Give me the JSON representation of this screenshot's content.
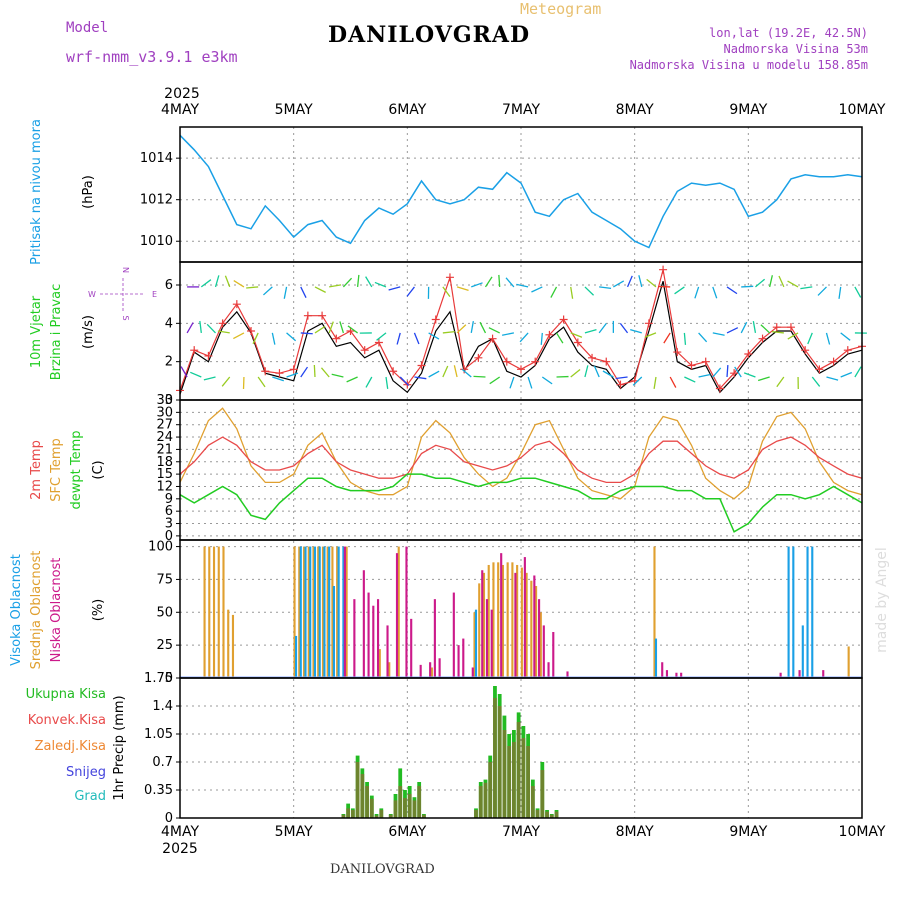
{
  "header": {
    "model_label": "Model",
    "model_name": "wrf-nmm_v3.9.1  e3km",
    "title": "DANILOVGRAD",
    "meteogram_label": "Meteogram",
    "lonlat": "lon,lat (19.2E, 42.5N)",
    "elevation": "Nadmorska Visina 53m",
    "model_elevation": "Nadmorska Visina u modelu 158.85m",
    "credit": "made by Angel",
    "footer_title": "DANILOVGRAD"
  },
  "colors": {
    "pressure": "#1aa0e6",
    "wind_speed": "#000000",
    "gust": "#e83a3a",
    "t2m": "#e84a4a",
    "tsfc": "#e0a030",
    "dewpt": "#22cc22",
    "high_cloud": "#1aa0e6",
    "mid_cloud": "#e0a030",
    "low_cloud": "#cc1a8a",
    "total_precip": "#22bb22",
    "conv_precip": "#e84a4a",
    "frozen": "#ee8833",
    "snow": "#4444dd",
    "graupel": "#22bbbb",
    "axis_label_cyan": "#1aa0e6",
    "axis_label_green": "#22cc22",
    "axis_label_purple": "#a040c0"
  },
  "chart_data": {
    "type": "line",
    "x_axis": {
      "top_year": "2025",
      "bottom_year": "2025",
      "ticks": [
        "4MAY",
        "5MAY",
        "6MAY",
        "7MAY",
        "8MAY",
        "9MAY",
        "10MAY"
      ],
      "range_hours": [
        0,
        144
      ]
    },
    "panels": {
      "pressure": {
        "label": "Pritisak na nivou mora",
        "unit": "(hPa)",
        "ylim": [
          1009,
          1015.5
        ],
        "yticks": [
          "1010",
          "1012",
          "1014"
        ],
        "hours": [
          0,
          3,
          6,
          9,
          12,
          15,
          18,
          21,
          24,
          27,
          30,
          33,
          36,
          39,
          42,
          45,
          48,
          51,
          54,
          57,
          60,
          63,
          66,
          69,
          72,
          75,
          78,
          81,
          84,
          87,
          90,
          93,
          96,
          99,
          102,
          105,
          108,
          111,
          114,
          117,
          120,
          123,
          126,
          129,
          132,
          135,
          138,
          141,
          144
        ],
        "values": [
          1015.1,
          1014.4,
          1013.6,
          1012.2,
          1010.8,
          1010.6,
          1011.7,
          1011.0,
          1010.2,
          1010.8,
          1011.0,
          1010.2,
          1009.9,
          1011.0,
          1011.6,
          1011.3,
          1011.8,
          1012.9,
          1012.0,
          1011.8,
          1012.0,
          1012.6,
          1012.5,
          1013.3,
          1012.8,
          1011.4,
          1011.2,
          1012.0,
          1012.3,
          1011.4,
          1011.0,
          1010.6,
          1010.0,
          1009.7,
          1011.2,
          1012.4,
          1012.8,
          1012.7,
          1012.8,
          1012.5,
          1011.2,
          1011.4,
          1012.0,
          1013.0,
          1013.2,
          1013.1,
          1013.1,
          1013.2,
          1013.1
        ]
      },
      "wind": {
        "label_1": "10m Vjetar",
        "label_2": "Brzina i Pravac",
        "unit": "(m/s)",
        "compass": {
          "n": "N",
          "s": "S",
          "e": "E",
          "w": "W"
        },
        "ylim": [
          0,
          7.2
        ],
        "yticks": [
          "0",
          "2",
          "4",
          "6"
        ],
        "hours": [
          0,
          3,
          6,
          9,
          12,
          15,
          18,
          21,
          24,
          27,
          30,
          33,
          36,
          39,
          42,
          45,
          48,
          51,
          54,
          57,
          60,
          63,
          66,
          69,
          72,
          75,
          78,
          81,
          84,
          87,
          90,
          93,
          96,
          99,
          102,
          105,
          108,
          111,
          114,
          117,
          120,
          123,
          126,
          129,
          132,
          135,
          138,
          141,
          144
        ],
        "speed": [
          0.3,
          2.5,
          2.0,
          3.8,
          4.6,
          3.5,
          1.4,
          1.2,
          1.0,
          3.6,
          4.0,
          2.8,
          3.0,
          2.2,
          2.6,
          1.0,
          0.4,
          1.4,
          3.6,
          4.6,
          1.5,
          2.8,
          3.2,
          1.5,
          1.2,
          1.8,
          3.2,
          3.8,
          2.5,
          1.8,
          1.6,
          0.6,
          1.2,
          3.6,
          6.2,
          2.0,
          1.6,
          1.8,
          0.4,
          1.2,
          2.2,
          3.0,
          3.6,
          3.6,
          2.4,
          1.4,
          1.8,
          2.4,
          2.6
        ],
        "gust": [
          0.5,
          2.6,
          2.3,
          4.0,
          5.0,
          3.6,
          1.5,
          1.4,
          1.6,
          4.4,
          4.4,
          3.2,
          3.6,
          2.6,
          3.0,
          1.5,
          0.8,
          1.8,
          4.2,
          6.4,
          1.6,
          2.2,
          3.2,
          2.0,
          1.6,
          2.0,
          3.4,
          4.2,
          3.0,
          2.2,
          2.0,
          0.8,
          1.0,
          4.0,
          6.8,
          2.5,
          1.8,
          2.0,
          0.6,
          1.4,
          2.4,
          3.2,
          3.8,
          3.8,
          2.6,
          1.6,
          2.0,
          2.6,
          2.8
        ]
      },
      "temperature": {
        "label_1": "2m Temp",
        "label_2": "SFC Temp",
        "label_3": "dewpt Temp",
        "unit": "(C)",
        "ylim": [
          -1,
          33
        ],
        "yticks": [
          "0",
          "3",
          "6",
          "9",
          "12",
          "15",
          "18",
          "21",
          "24",
          "27",
          "30",
          "33"
        ],
        "hours": [
          0,
          3,
          6,
          9,
          12,
          15,
          18,
          21,
          24,
          27,
          30,
          33,
          36,
          39,
          42,
          45,
          48,
          51,
          54,
          57,
          60,
          63,
          66,
          69,
          72,
          75,
          78,
          81,
          84,
          87,
          90,
          93,
          96,
          99,
          102,
          105,
          108,
          111,
          114,
          117,
          120,
          123,
          126,
          129,
          132,
          135,
          138,
          141,
          144
        ],
        "t2m": [
          15,
          18,
          22,
          24,
          22,
          18,
          16,
          16,
          17,
          20,
          22,
          18,
          16,
          15,
          14,
          14,
          15,
          20,
          22,
          21,
          18,
          17,
          16,
          17,
          19,
          22,
          23,
          20,
          16,
          14,
          13,
          13,
          15,
          20,
          23,
          23,
          20,
          17,
          15,
          14,
          16,
          21,
          23,
          24,
          22,
          19,
          17,
          15,
          14
        ],
        "tsfc": [
          13,
          20,
          28,
          31,
          26,
          17,
          13,
          13,
          15,
          22,
          25,
          18,
          13,
          11,
          10,
          10,
          12,
          24,
          28,
          25,
          19,
          15,
          12,
          14,
          20,
          27,
          28,
          21,
          14,
          11,
          10,
          9,
          12,
          24,
          29,
          28,
          22,
          14,
          11,
          9,
          12,
          23,
          29,
          30,
          26,
          18,
          13,
          11,
          10
        ],
        "dewpt": [
          10,
          8,
          10,
          12,
          10,
          5,
          4,
          8,
          11,
          14,
          14,
          12,
          11,
          11,
          11,
          12,
          15,
          15,
          14,
          14,
          13,
          12,
          13,
          13,
          14,
          14,
          13,
          12,
          11,
          9,
          9,
          11,
          12,
          12,
          12,
          11,
          11,
          9,
          9,
          1,
          3,
          7,
          10,
          10,
          9,
          10,
          12,
          10,
          8
        ]
      },
      "clouds": {
        "label_1": "Visoka Oblacnost",
        "label_2": "Srednja Oblacnost",
        "label_3": "Niska Oblacnost",
        "unit": "(%)",
        "ylim": [
          0,
          105
        ],
        "yticks": [
          "0",
          "25",
          "50",
          "75",
          "100"
        ],
        "high": [
          [
            24,
            32
          ],
          [
            25,
            100
          ],
          [
            26,
            100
          ],
          [
            27,
            100
          ],
          [
            28,
            100
          ],
          [
            29,
            100
          ],
          [
            30,
            100
          ],
          [
            31,
            100
          ],
          [
            32,
            70
          ],
          [
            33,
            100
          ],
          [
            34,
            100
          ],
          [
            62,
            52
          ],
          [
            100,
            30
          ],
          [
            128,
            100
          ],
          [
            129,
            100
          ],
          [
            131,
            40
          ],
          [
            132,
            100
          ],
          [
            133,
            100
          ]
        ],
        "mid": [
          [
            5,
            100
          ],
          [
            6,
            100
          ],
          [
            7,
            100
          ],
          [
            8,
            100
          ],
          [
            9,
            100
          ],
          [
            10,
            52
          ],
          [
            11,
            48
          ],
          [
            24,
            100
          ],
          [
            25,
            100
          ],
          [
            26,
            100
          ],
          [
            27,
            100
          ],
          [
            28,
            100
          ],
          [
            29,
            100
          ],
          [
            30,
            100
          ],
          [
            31,
            100
          ],
          [
            32,
            100
          ],
          [
            33,
            100
          ],
          [
            35,
            100
          ],
          [
            42,
            22
          ],
          [
            44,
            12
          ],
          [
            46,
            100
          ],
          [
            53,
            8
          ],
          [
            62,
            50
          ],
          [
            63,
            72
          ],
          [
            64,
            80
          ],
          [
            65,
            86
          ],
          [
            66,
            88
          ],
          [
            67,
            88
          ],
          [
            68,
            86
          ],
          [
            69,
            88
          ],
          [
            70,
            88
          ],
          [
            71,
            86
          ],
          [
            72,
            84
          ],
          [
            73,
            80
          ],
          [
            74,
            74
          ],
          [
            75,
            70
          ],
          [
            76,
            50
          ],
          [
            100,
            100
          ],
          [
            141,
            24
          ]
        ],
        "low": [
          [
            34,
            100
          ],
          [
            36,
            60
          ],
          [
            38,
            82
          ],
          [
            39,
            65
          ],
          [
            40,
            55
          ],
          [
            41,
            60
          ],
          [
            43,
            40
          ],
          [
            45,
            95
          ],
          [
            47,
            100
          ],
          [
            48,
            45
          ],
          [
            50,
            10
          ],
          [
            52,
            12
          ],
          [
            53,
            60
          ],
          [
            54,
            15
          ],
          [
            57,
            65
          ],
          [
            58,
            25
          ],
          [
            59,
            30
          ],
          [
            61,
            8
          ],
          [
            63,
            82
          ],
          [
            64,
            60
          ],
          [
            65,
            52
          ],
          [
            67,
            95
          ],
          [
            70,
            80
          ],
          [
            72,
            92
          ],
          [
            74,
            78
          ],
          [
            75,
            60
          ],
          [
            76,
            40
          ],
          [
            77,
            12
          ],
          [
            78,
            35
          ],
          [
            81,
            5
          ],
          [
            101,
            12
          ],
          [
            102,
            6
          ],
          [
            104,
            4
          ],
          [
            105,
            4
          ],
          [
            126,
            4
          ],
          [
            130,
            6
          ],
          [
            135,
            6
          ]
        ]
      },
      "precip": {
        "label_1": "Ukupna Kisa",
        "label_2": "Konvek.Kisa",
        "label_3": "Zaledj.Kisa",
        "label_4": "Snijeg",
        "label_5": "Grad",
        "unit": "1hr Precip (mm)",
        "ylim": [
          0,
          1.75
        ],
        "yticks": [
          "0",
          "0.35",
          "0.7",
          "1.05",
          "1.4",
          "1.75"
        ],
        "bars": [
          [
            34,
            0.05,
            0.04
          ],
          [
            35,
            0.18,
            0.12
          ],
          [
            36,
            0.12,
            0.1
          ],
          [
            37,
            0.78,
            0.7
          ],
          [
            38,
            0.62,
            0.55
          ],
          [
            39,
            0.45,
            0.4
          ],
          [
            40,
            0.28,
            0.24
          ],
          [
            41,
            0.05,
            0.03
          ],
          [
            42,
            0.12,
            0.1
          ],
          [
            44,
            0.05,
            0.04
          ],
          [
            45,
            0.3,
            0.22
          ],
          [
            46,
            0.62,
            0.4
          ],
          [
            47,
            0.35,
            0.25
          ],
          [
            48,
            0.4,
            0.3
          ],
          [
            49,
            0.26,
            0.22
          ],
          [
            50,
            0.45,
            0.4
          ],
          [
            51,
            0.05,
            0.04
          ],
          [
            62,
            0.12,
            0.1
          ],
          [
            63,
            0.45,
            0.4
          ],
          [
            64,
            0.48,
            0.44
          ],
          [
            65,
            0.78,
            0.7
          ],
          [
            66,
            1.65,
            1.5
          ],
          [
            67,
            1.55,
            1.4
          ],
          [
            68,
            1.28,
            1.1
          ],
          [
            69,
            1.05,
            0.9
          ],
          [
            70,
            1.1,
            0.95
          ],
          [
            71,
            1.32,
            1.2
          ],
          [
            72,
            1.15,
            1.0
          ],
          [
            73,
            1.05,
            0.9
          ],
          [
            74,
            0.48,
            0.4
          ],
          [
            75,
            0.12,
            0.1
          ],
          [
            76,
            0.7,
            0.6
          ],
          [
            77,
            0.1,
            0.08
          ],
          [
            78,
            0.05,
            0.04
          ],
          [
            79,
            0.1,
            0.08
          ]
        ]
      }
    }
  }
}
